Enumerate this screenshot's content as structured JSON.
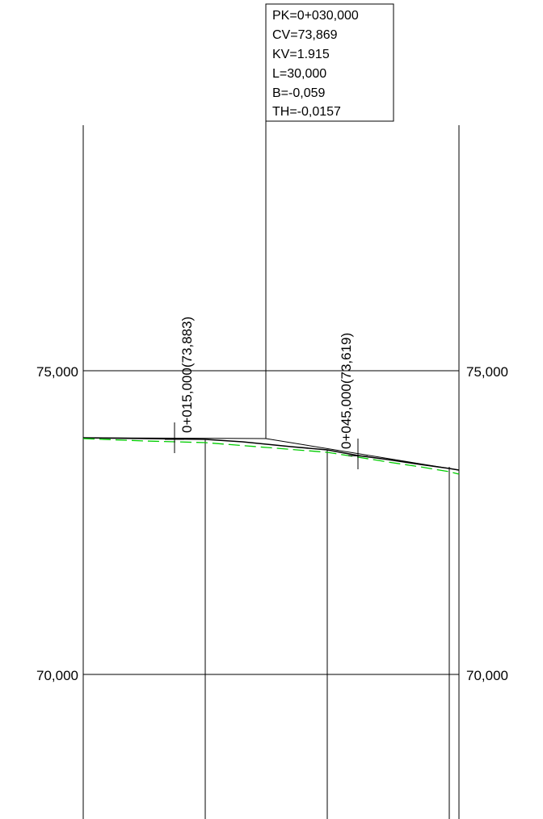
{
  "info_box": {
    "pk": "PK=0+030,000",
    "cv": "CV=73,869",
    "kv": "KV=1.915",
    "l": "L=30,000",
    "b": "B=-0,059",
    "th": "TH=-0,0157"
  },
  "elevation_labels": {
    "upper_left": "75,000",
    "upper_right": "75,000",
    "lower_left": "70,000",
    "lower_right": "70,000"
  },
  "station_labels": {
    "first": "0+015,000(73,883)",
    "second": "0+045,000(73,619)"
  },
  "colors": {
    "profile_line": "#000000",
    "terrain_dashed": "#00cc00"
  }
}
